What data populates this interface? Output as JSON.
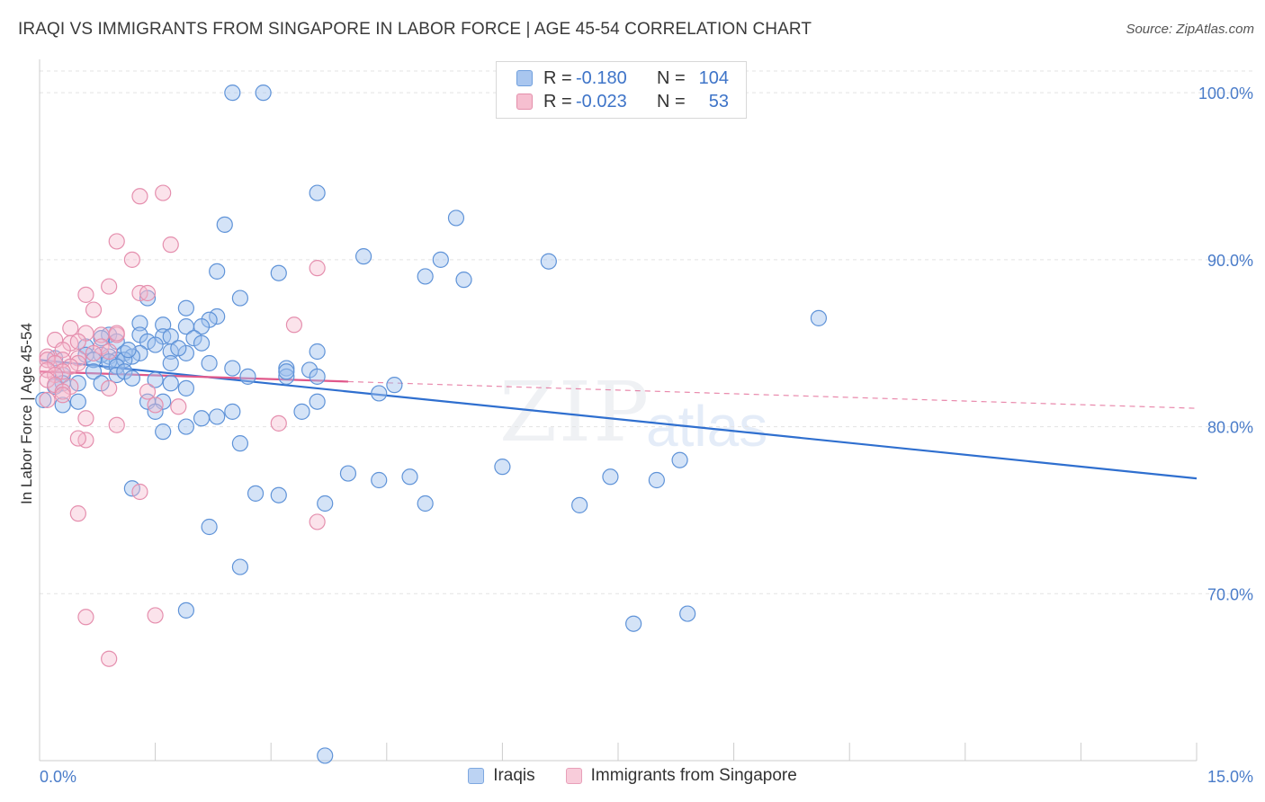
{
  "header": {
    "title": "IRAQI VS IMMIGRANTS FROM SINGAPORE IN LABOR FORCE | AGE 45-54 CORRELATION CHART",
    "source": "Source: ZipAtlas.com"
  },
  "watermark": {
    "part1": "ZIP",
    "part2": "atlas"
  },
  "legend": {
    "rows": [
      {
        "r_label": "R =",
        "r_value": "-0.180",
        "n_label": "N =",
        "n_value": "104",
        "color": "#a9c6ef",
        "border": "#6f9fdd"
      },
      {
        "r_label": "R =",
        "r_value": "-0.023",
        "n_label": "N =",
        "n_value": "53",
        "color": "#f6bfd0",
        "border": "#e48fab"
      }
    ]
  },
  "colors": {
    "iraqi_fill": "rgba(160,193,238,0.45)",
    "iraqi_stroke": "#5f93d8",
    "iraqi_line": "#2f6fcf",
    "sing_fill": "rgba(246,185,205,0.40)",
    "sing_stroke": "#e58fae",
    "sing_line": "#e0588a",
    "grid": "#e3e3e3",
    "tick_text": "#4a7cc9"
  },
  "chart_data": {
    "type": "scatter",
    "title": "IRAQI VS IMMIGRANTS FROM SINGAPORE IN LABOR FORCE | AGE 45-54 CORRELATION CHART",
    "xlabel": "",
    "ylabel": "In Labor Force | Age 45-54",
    "xlim": [
      0,
      15
    ],
    "ylim": [
      60.0,
      102.0
    ],
    "x_ticks": [
      "0.0%",
      "15.0%"
    ],
    "y_ticks": [
      {
        "value": 100,
        "label": "100.0%"
      },
      {
        "value": 90,
        "label": "90.0%"
      },
      {
        "value": 80,
        "label": "80.0%"
      },
      {
        "value": 70,
        "label": "70.0%"
      }
    ],
    "grid": true,
    "legend_position": "bottom-center",
    "series": [
      {
        "name": "Iraqis",
        "trend": {
          "x0": 0.0,
          "y0": 84.0,
          "x1": 15.0,
          "y1": 76.9
        },
        "points": [
          [
            2.5,
            100
          ],
          [
            2.9,
            100
          ],
          [
            3.6,
            94
          ],
          [
            5.4,
            92.5
          ],
          [
            2.4,
            92.1
          ],
          [
            4.2,
            90.2
          ],
          [
            5.2,
            90
          ],
          [
            6.6,
            89.9
          ],
          [
            2.3,
            89.3
          ],
          [
            3.1,
            89.2
          ],
          [
            5,
            89
          ],
          [
            5.5,
            88.8
          ],
          [
            1.4,
            87.7
          ],
          [
            2.6,
            87.7
          ],
          [
            1.9,
            87.1
          ],
          [
            1.6,
            86.1
          ],
          [
            1.3,
            86.2
          ],
          [
            2.3,
            86.6
          ],
          [
            2.2,
            86.4
          ],
          [
            2.1,
            86
          ],
          [
            1.9,
            86
          ],
          [
            0.9,
            85.5
          ],
          [
            1.3,
            85.5
          ],
          [
            1.6,
            85.4
          ],
          [
            1.7,
            85.4
          ],
          [
            1.4,
            85.1
          ],
          [
            2,
            85.3
          ],
          [
            1,
            85.1
          ],
          [
            0.8,
            85.3
          ],
          [
            1.5,
            84.9
          ],
          [
            2.1,
            85
          ],
          [
            0.6,
            84.8
          ],
          [
            1.7,
            84.5
          ],
          [
            1.9,
            84.4
          ],
          [
            1.3,
            84.4
          ],
          [
            3.6,
            84.5
          ],
          [
            0.9,
            84.2
          ],
          [
            0.8,
            84.3
          ],
          [
            1.1,
            84.4
          ],
          [
            0.6,
            84.3
          ],
          [
            1.2,
            84.2
          ],
          [
            0.7,
            84
          ],
          [
            1,
            84
          ],
          [
            1.1,
            84
          ],
          [
            0.9,
            83.9
          ],
          [
            2.2,
            83.8
          ],
          [
            1,
            83.6
          ],
          [
            2.5,
            83.5
          ],
          [
            0.7,
            83.3
          ],
          [
            1,
            83.1
          ],
          [
            3.2,
            83.5
          ],
          [
            3.5,
            83.4
          ],
          [
            1.1,
            83.3
          ],
          [
            3.2,
            83
          ],
          [
            3.6,
            83
          ],
          [
            2.7,
            83
          ],
          [
            0.3,
            83.1
          ],
          [
            1.2,
            82.9
          ],
          [
            1.5,
            82.8
          ],
          [
            0.3,
            82.6
          ],
          [
            0.5,
            82.6
          ],
          [
            0.8,
            82.6
          ],
          [
            1.7,
            82.6
          ],
          [
            4.6,
            82.5
          ],
          [
            1.9,
            82.3
          ],
          [
            0.2,
            82.4
          ],
          [
            4.4,
            82
          ],
          [
            1.4,
            81.5
          ],
          [
            1.6,
            81.5
          ],
          [
            3.6,
            81.5
          ],
          [
            0.5,
            81.5
          ],
          [
            0.3,
            81.3
          ],
          [
            1.5,
            80.9
          ],
          [
            2.5,
            80.9
          ],
          [
            3.4,
            80.9
          ],
          [
            2.3,
            80.6
          ],
          [
            2.1,
            80.5
          ],
          [
            1.9,
            80
          ],
          [
            1.6,
            79.7
          ],
          [
            2.6,
            79
          ],
          [
            8.3,
            78
          ],
          [
            4,
            77.2
          ],
          [
            4.4,
            76.8
          ],
          [
            4.8,
            77
          ],
          [
            6,
            77.6
          ],
          [
            7.4,
            77
          ],
          [
            8,
            76.8
          ],
          [
            1.2,
            76.3
          ],
          [
            2.8,
            76
          ],
          [
            3.1,
            75.9
          ],
          [
            3.7,
            75.4
          ],
          [
            5,
            75.4
          ],
          [
            7,
            75.3
          ],
          [
            2.2,
            74
          ],
          [
            2.6,
            71.6
          ],
          [
            1.9,
            69
          ],
          [
            7.7,
            68.2
          ],
          [
            8.4,
            68.8
          ],
          [
            10.1,
            86.5
          ],
          [
            3.7,
            60.3
          ],
          [
            1.7,
            83.8
          ],
          [
            0.2,
            84.1
          ],
          [
            3.2,
            83.3
          ],
          [
            1.8,
            84.7
          ]
        ]
      },
      {
        "name": "Immigrants from Singapore",
        "trend": {
          "x0": 0.0,
          "y0": 83.3,
          "x1": 4.0,
          "y1": 82.7,
          "dash_x1": 15.0,
          "dash_y1": 81.1
        },
        "points": [
          [
            1.3,
            93.8
          ],
          [
            1.6,
            94
          ],
          [
            1,
            91.1
          ],
          [
            1.7,
            90.9
          ],
          [
            1.2,
            90
          ],
          [
            0.9,
            88.4
          ],
          [
            1.3,
            88
          ],
          [
            1.4,
            88
          ],
          [
            0.6,
            87.9
          ],
          [
            0.7,
            87
          ],
          [
            3.6,
            89.5
          ],
          [
            3.3,
            86.1
          ],
          [
            0.4,
            85.9
          ],
          [
            0.6,
            85.6
          ],
          [
            0.8,
            85.5
          ],
          [
            1,
            85.5
          ],
          [
            1,
            85.6
          ],
          [
            0.2,
            85.2
          ],
          [
            0.4,
            85
          ],
          [
            0.5,
            85.1
          ],
          [
            0.3,
            84.6
          ],
          [
            0.8,
            84.8
          ],
          [
            0.9,
            84.5
          ],
          [
            0.5,
            84.1
          ],
          [
            0.1,
            84.2
          ],
          [
            0.1,
            84
          ],
          [
            0.3,
            84
          ],
          [
            0.7,
            84.4
          ],
          [
            0.2,
            83.8
          ],
          [
            0.5,
            83.8
          ],
          [
            0.4,
            83.6
          ],
          [
            0.1,
            83.4
          ],
          [
            0.3,
            83.3
          ],
          [
            0.2,
            83.1
          ],
          [
            0.1,
            82.8
          ],
          [
            0.2,
            82.5
          ],
          [
            0.4,
            82.4
          ],
          [
            1.4,
            82.1
          ],
          [
            0.9,
            82.3
          ],
          [
            0.3,
            82.1
          ],
          [
            0.3,
            81.9
          ],
          [
            0.1,
            81.6
          ],
          [
            1.5,
            81.3
          ],
          [
            1.8,
            81.2
          ],
          [
            0.6,
            80.5
          ],
          [
            1,
            80.1
          ],
          [
            3.1,
            80.2
          ],
          [
            0.6,
            79.2
          ],
          [
            0.5,
            79.3
          ],
          [
            1.3,
            76.1
          ],
          [
            0.5,
            74.8
          ],
          [
            3.6,
            74.3
          ],
          [
            0.6,
            68.6
          ]
        ]
      }
    ],
    "extra_points_sing": [
      [
        1.5,
        68.7
      ],
      [
        0.9,
        66.1
      ]
    ],
    "extra_points_iraqi": [
      [
        0.05,
        81.6
      ],
      [
        1.15,
        84.6
      ]
    ]
  },
  "bottom_legend": {
    "items": [
      {
        "label": "Iraqis"
      },
      {
        "label": "Immigrants from Singapore"
      }
    ]
  }
}
